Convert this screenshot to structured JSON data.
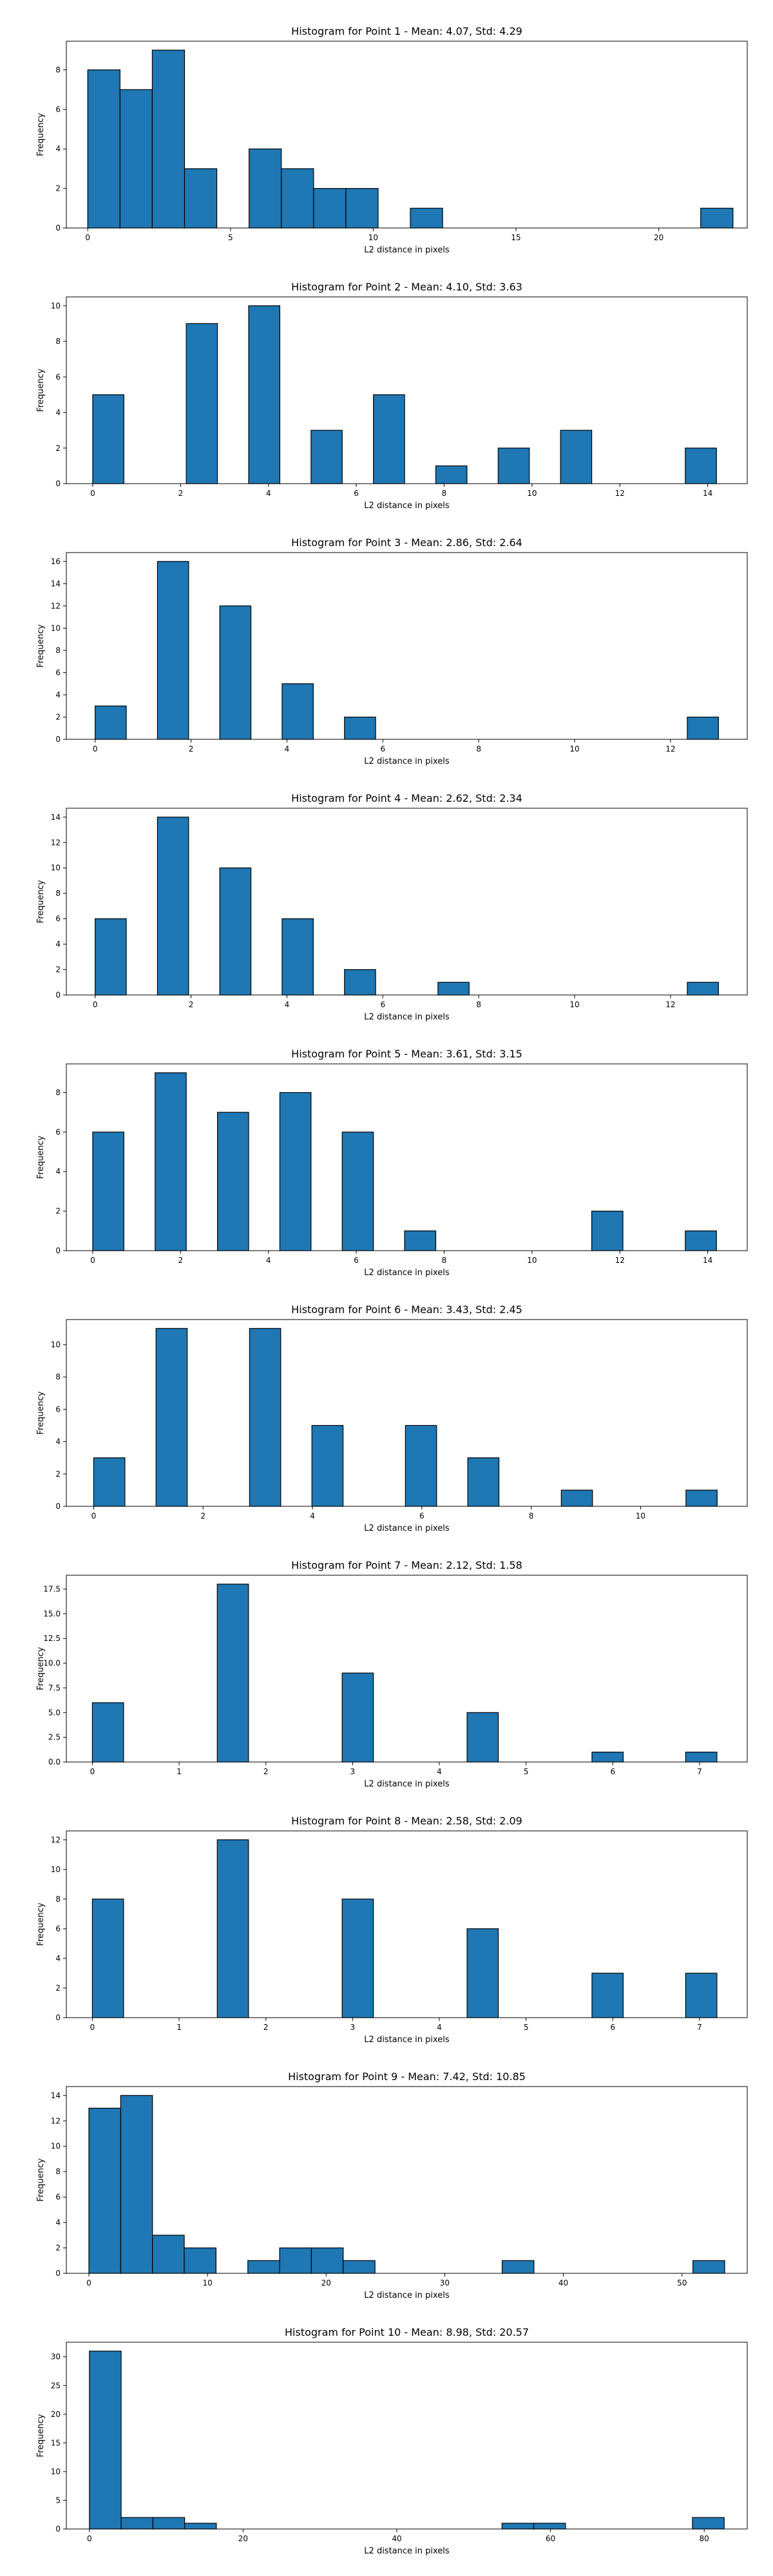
{
  "chart_data": [
    {
      "type": "bar",
      "title": "Histogram for Point 1 - Mean: 4.07, Std: 4.29",
      "xlabel": "L2 distance in pixels",
      "ylabel": "Frequency",
      "bin_edges": [
        0,
        1.13,
        2.26,
        3.39,
        4.52,
        5.65,
        6.78,
        7.91,
        9.04,
        10.17,
        11.3,
        12.43,
        13.56,
        14.69,
        15.82,
        16.95,
        18.08,
        19.21,
        20.34,
        21.47,
        22.6
      ],
      "counts": [
        8,
        7,
        9,
        3,
        0,
        4,
        3,
        2,
        2,
        0,
        1,
        0,
        0,
        0,
        0,
        0,
        0,
        0,
        0,
        1
      ],
      "xlim": [
        -0.75,
        23.1
      ],
      "ylim": [
        0,
        9.45
      ],
      "xticks": [
        0,
        5,
        10,
        15,
        20
      ],
      "yticks": [
        0,
        2,
        4,
        6,
        8
      ]
    },
    {
      "type": "bar",
      "title": "Histogram for Point 2 - Mean: 4.10, Std: 3.63",
      "xlabel": "L2 distance in pixels",
      "ylabel": "Frequency",
      "bin_edges": [
        0,
        0.71,
        1.42,
        2.13,
        2.84,
        3.55,
        4.26,
        4.97,
        5.68,
        6.39,
        7.1,
        7.81,
        8.52,
        9.23,
        9.94,
        10.65,
        11.36,
        12.07,
        12.78,
        13.49,
        14.2
      ],
      "counts": [
        5,
        0,
        0,
        9,
        0,
        10,
        0,
        3,
        0,
        5,
        0,
        1,
        0,
        2,
        0,
        3,
        0,
        0,
        0,
        2
      ],
      "xlim": [
        -0.6,
        14.9
      ],
      "ylim": [
        0,
        10.5
      ],
      "xticks": [
        0,
        2,
        4,
        6,
        8,
        10,
        12,
        14
      ],
      "yticks": [
        0,
        2,
        4,
        6,
        8,
        10
      ]
    },
    {
      "type": "bar",
      "title": "Histogram for Point 3 - Mean: 2.86, Std: 2.64",
      "xlabel": "L2 distance in pixels",
      "ylabel": "Frequency",
      "bin_edges": [
        0,
        0.65,
        1.3,
        1.95,
        2.6,
        3.25,
        3.9,
        4.55,
        5.2,
        5.85,
        6.5,
        7.15,
        7.8,
        8.45,
        9.1,
        9.75,
        10.4,
        11.05,
        11.7,
        12.35,
        13.0
      ],
      "counts": [
        3,
        0,
        16,
        0,
        12,
        0,
        5,
        0,
        2,
        0,
        0,
        0,
        0,
        0,
        0,
        0,
        0,
        0,
        0,
        2
      ],
      "xlim": [
        -0.6,
        13.6
      ],
      "ylim": [
        0,
        16.8
      ],
      "xticks": [
        0,
        2,
        4,
        6,
        8,
        10,
        12
      ],
      "yticks": [
        0,
        2,
        4,
        6,
        8,
        10,
        12,
        14,
        16
      ]
    },
    {
      "type": "bar",
      "title": "Histogram for Point 4 - Mean: 2.62, Std: 2.34",
      "xlabel": "L2 distance in pixels",
      "ylabel": "Frequency",
      "bin_edges": [
        0,
        0.65,
        1.3,
        1.95,
        2.6,
        3.25,
        3.9,
        4.55,
        5.2,
        5.85,
        6.5,
        7.15,
        7.8,
        8.45,
        9.1,
        9.75,
        10.4,
        11.05,
        11.7,
        12.35,
        13.0
      ],
      "counts": [
        6,
        0,
        14,
        0,
        10,
        0,
        6,
        0,
        2,
        0,
        0,
        1,
        0,
        0,
        0,
        0,
        0,
        0,
        0,
        1
      ],
      "xlim": [
        -0.6,
        13.6
      ],
      "ylim": [
        0,
        14.7
      ],
      "xticks": [
        0,
        2,
        4,
        6,
        8,
        10,
        12
      ],
      "yticks": [
        0,
        2,
        4,
        6,
        8,
        10,
        12,
        14
      ]
    },
    {
      "type": "bar",
      "title": "Histogram for Point 5 - Mean: 3.61, Std: 3.15",
      "xlabel": "L2 distance in pixels",
      "ylabel": "Frequency",
      "bin_edges": [
        0,
        0.71,
        1.42,
        2.13,
        2.84,
        3.55,
        4.26,
        4.97,
        5.68,
        6.39,
        7.1,
        7.81,
        8.52,
        9.23,
        9.94,
        10.65,
        11.36,
        12.07,
        12.78,
        13.49,
        14.2
      ],
      "counts": [
        6,
        0,
        9,
        0,
        7,
        0,
        8,
        0,
        6,
        0,
        1,
        0,
        0,
        0,
        0,
        0,
        2,
        0,
        0,
        1
      ],
      "xlim": [
        -0.6,
        14.9
      ],
      "ylim": [
        0,
        9.45
      ],
      "xticks": [
        0,
        2,
        4,
        6,
        8,
        10,
        12,
        14
      ],
      "yticks": [
        0,
        2,
        4,
        6,
        8
      ]
    },
    {
      "type": "bar",
      "title": "Histogram for Point 6 - Mean: 3.43, Std: 2.45",
      "xlabel": "L2 distance in pixels",
      "ylabel": "Frequency",
      "bin_edges": [
        0,
        0.57,
        1.14,
        1.71,
        2.28,
        2.85,
        3.42,
        3.99,
        4.56,
        5.13,
        5.7,
        6.27,
        6.84,
        7.41,
        7.98,
        8.55,
        9.12,
        9.69,
        10.26,
        10.83,
        11.4
      ],
      "counts": [
        3,
        0,
        11,
        0,
        0,
        11,
        0,
        5,
        0,
        0,
        5,
        0,
        3,
        0,
        0,
        1,
        0,
        0,
        0,
        1
      ],
      "xlim": [
        -0.5,
        11.95
      ],
      "ylim": [
        0,
        11.55
      ],
      "xticks": [
        0,
        2,
        4,
        6,
        8,
        10
      ],
      "yticks": [
        0,
        2,
        4,
        6,
        8,
        10
      ]
    },
    {
      "type": "bar",
      "title": "Histogram for Point 7 - Mean: 2.12, Std: 1.58",
      "xlabel": "L2 distance in pixels",
      "ylabel": "Frequency",
      "bin_edges": [
        0,
        0.36,
        0.72,
        1.08,
        1.44,
        1.8,
        2.16,
        2.52,
        2.88,
        3.24,
        3.6,
        3.96,
        4.32,
        4.68,
        5.04,
        5.4,
        5.76,
        6.12,
        6.48,
        6.84,
        7.2
      ],
      "counts": [
        6,
        0,
        0,
        0,
        18,
        0,
        0,
        0,
        9,
        0,
        0,
        0,
        5,
        0,
        0,
        0,
        1,
        0,
        0,
        1
      ],
      "xlim": [
        -0.3,
        7.55
      ],
      "ylim": [
        0,
        18.9
      ],
      "xticks": [
        0,
        1,
        2,
        3,
        4,
        5,
        6,
        7
      ],
      "yticks": [
        0,
        2.5,
        5.0,
        7.5,
        10.0,
        12.5,
        15.0,
        17.5
      ],
      "ytick_labels": [
        "0.0",
        "2.5",
        "5.0",
        "7.5",
        "10.0",
        "12.5",
        "15.0",
        "17.5"
      ]
    },
    {
      "type": "bar",
      "title": "Histogram for Point 8 - Mean: 2.58, Std: 2.09",
      "xlabel": "L2 distance in pixels",
      "ylabel": "Frequency",
      "bin_edges": [
        0,
        0.36,
        0.72,
        1.08,
        1.44,
        1.8,
        2.16,
        2.52,
        2.88,
        3.24,
        3.6,
        3.96,
        4.32,
        4.68,
        5.04,
        5.4,
        5.76,
        6.12,
        6.48,
        6.84,
        7.2
      ],
      "counts": [
        8,
        0,
        0,
        0,
        12,
        0,
        0,
        0,
        8,
        0,
        0,
        0,
        6,
        0,
        0,
        0,
        3,
        0,
        0,
        3
      ],
      "xlim": [
        -0.3,
        7.55
      ],
      "ylim": [
        0,
        12.6
      ],
      "xticks": [
        0,
        1,
        2,
        3,
        4,
        5,
        6,
        7
      ],
      "yticks": [
        0,
        2,
        4,
        6,
        8,
        10,
        12
      ]
    },
    {
      "type": "bar",
      "title": "Histogram for Point 9 - Mean: 7.42, Std: 10.85",
      "xlabel": "L2 distance in pixels",
      "ylabel": "Frequency",
      "bin_edges": [
        0,
        2.68,
        5.36,
        8.04,
        10.72,
        13.4,
        16.08,
        18.76,
        21.44,
        24.12,
        26.8,
        29.48,
        32.16,
        34.84,
        37.52,
        40.2,
        42.88,
        45.56,
        48.24,
        50.92,
        53.6
      ],
      "counts": [
        13,
        14,
        3,
        2,
        0,
        1,
        2,
        2,
        1,
        0,
        0,
        0,
        0,
        1,
        0,
        0,
        0,
        0,
        0,
        1
      ],
      "xlim": [
        -1.9,
        55.5
      ],
      "ylim": [
        0,
        14.7
      ],
      "xticks": [
        0,
        10,
        20,
        30,
        40,
        50
      ],
      "yticks": [
        0,
        2,
        4,
        6,
        8,
        10,
        12,
        14
      ]
    },
    {
      "type": "bar",
      "title": "Histogram for Point 10 - Mean: 8.98, Std: 20.57",
      "xlabel": "L2 distance in pixels",
      "ylabel": "Frequency",
      "bin_edges": [
        0,
        4.13,
        8.26,
        12.39,
        16.52,
        20.65,
        24.78,
        28.91,
        33.04,
        37.17,
        41.3,
        45.43,
        49.56,
        53.69,
        57.82,
        61.95,
        66.08,
        70.21,
        74.34,
        78.47,
        82.6
      ],
      "counts": [
        31,
        2,
        2,
        1,
        0,
        0,
        0,
        0,
        0,
        0,
        0,
        0,
        0,
        1,
        1,
        0,
        0,
        0,
        0,
        2
      ],
      "xlim": [
        -3.0,
        85.6
      ],
      "ylim": [
        0,
        32.55
      ],
      "xticks": [
        0,
        20,
        40,
        60,
        80
      ],
      "yticks": [
        0,
        5,
        10,
        15,
        20,
        25,
        30
      ]
    }
  ],
  "colors": {
    "bar_fill": "#1f77b4",
    "bar_edge": "#000000",
    "axis": "#000000",
    "background": "#ffffff"
  }
}
